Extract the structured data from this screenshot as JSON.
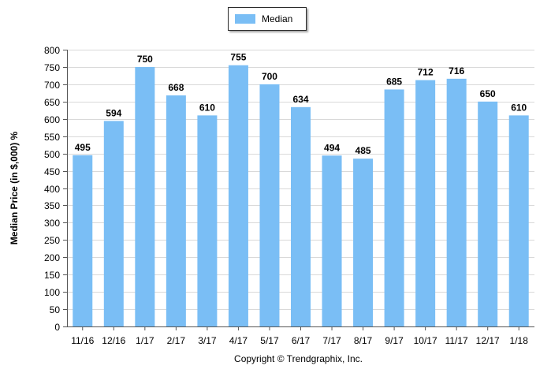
{
  "legend": {
    "label": "Median",
    "color": "#7abef5"
  },
  "copyright": "Copyright © Trendgraphix, Inc.",
  "chart_data": {
    "type": "bar",
    "categories": [
      "11/16",
      "12/16",
      "1/17",
      "2/17",
      "3/17",
      "4/17",
      "5/17",
      "6/17",
      "7/17",
      "8/17",
      "9/17",
      "10/17",
      "11/17",
      "12/17",
      "1/18"
    ],
    "series": [
      {
        "name": "Median",
        "values": [
          495,
          594,
          750,
          668,
          610,
          755,
          700,
          634,
          494,
          485,
          685,
          712,
          716,
          650,
          610
        ]
      }
    ],
    "ylabel": "Median Price (in $,000) %",
    "xlabel": "",
    "ylim": [
      0,
      800
    ],
    "yticks": [
      0,
      50,
      100,
      150,
      200,
      250,
      300,
      350,
      400,
      450,
      500,
      550,
      600,
      650,
      700,
      750,
      800
    ],
    "grid": true,
    "legend_position": "top-center",
    "bar_color": "#7abef5",
    "grid_color": "#d9d9d9"
  }
}
